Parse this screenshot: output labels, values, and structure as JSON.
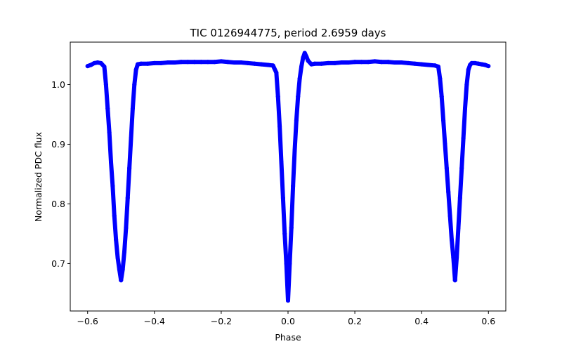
{
  "chart_data": {
    "type": "scatter",
    "title": "TIC 0126944775, period 2.6959 days",
    "xlabel": "Phase",
    "ylabel": "Normalized PDC flux",
    "xlim": [
      -0.652,
      0.652
    ],
    "ylim": [
      0.6205,
      1.0712
    ],
    "x_ticks": [
      -0.6,
      -0.4,
      -0.2,
      0.0,
      0.2,
      0.4,
      0.6
    ],
    "x_tick_labels": [
      "−0.6",
      "−0.4",
      "−0.2",
      "0.0",
      "0.2",
      "0.4",
      "0.6"
    ],
    "y_ticks": [
      0.7,
      0.8,
      0.9,
      1.0
    ],
    "y_tick_labels": [
      "0.7",
      "0.8",
      "0.9",
      "1.0"
    ],
    "grid": false,
    "legend": "none",
    "marker_color": "#0000ff",
    "series": [
      {
        "x": [
          -0.6,
          -0.59,
          -0.58,
          -0.57,
          -0.56,
          -0.55,
          -0.545,
          -0.54,
          -0.535,
          -0.53,
          -0.525,
          -0.52,
          -0.515,
          -0.51,
          -0.505,
          -0.5,
          -0.495,
          -0.49,
          -0.485,
          -0.48,
          -0.475,
          -0.47,
          -0.465,
          -0.46,
          -0.455,
          -0.45,
          -0.44,
          -0.42,
          -0.4,
          -0.38,
          -0.36,
          -0.34,
          -0.32,
          -0.3,
          -0.28,
          -0.26,
          -0.24,
          -0.22,
          -0.2,
          -0.18,
          -0.16,
          -0.14,
          -0.12,
          -0.1,
          -0.08,
          -0.06,
          -0.045,
          -0.035,
          -0.03,
          -0.025,
          -0.02,
          -0.015,
          -0.01,
          -0.005,
          0.0,
          0.005,
          0.01,
          0.015,
          0.02,
          0.025,
          0.03,
          0.035,
          0.04,
          0.045,
          0.05,
          0.055,
          0.06,
          0.07,
          0.08,
          0.1,
          0.12,
          0.14,
          0.16,
          0.18,
          0.2,
          0.22,
          0.24,
          0.26,
          0.28,
          0.3,
          0.32,
          0.34,
          0.36,
          0.38,
          0.4,
          0.42,
          0.44,
          0.45,
          0.455,
          0.46,
          0.465,
          0.47,
          0.475,
          0.48,
          0.485,
          0.49,
          0.495,
          0.5,
          0.505,
          0.51,
          0.515,
          0.52,
          0.525,
          0.53,
          0.535,
          0.54,
          0.545,
          0.55,
          0.56,
          0.57,
          0.58,
          0.59,
          0.6
        ],
        "y": [
          1.031,
          1.033,
          1.036,
          1.037,
          1.036,
          1.03,
          1.0,
          0.96,
          0.92,
          0.87,
          0.83,
          0.78,
          0.74,
          0.71,
          0.69,
          0.672,
          0.69,
          0.72,
          0.76,
          0.81,
          0.86,
          0.91,
          0.96,
          1.0,
          1.025,
          1.034,
          1.035,
          1.035,
          1.036,
          1.036,
          1.037,
          1.037,
          1.038,
          1.038,
          1.038,
          1.038,
          1.038,
          1.038,
          1.039,
          1.038,
          1.037,
          1.037,
          1.036,
          1.035,
          1.034,
          1.033,
          1.032,
          1.02,
          0.98,
          0.93,
          0.87,
          0.81,
          0.75,
          0.7,
          0.638,
          0.7,
          0.76,
          0.83,
          0.89,
          0.94,
          0.98,
          1.01,
          1.03,
          1.045,
          1.053,
          1.047,
          1.04,
          1.034,
          1.035,
          1.035,
          1.036,
          1.036,
          1.037,
          1.037,
          1.038,
          1.038,
          1.038,
          1.039,
          1.038,
          1.038,
          1.037,
          1.037,
          1.036,
          1.035,
          1.034,
          1.033,
          1.032,
          1.03,
          1.01,
          0.98,
          0.94,
          0.9,
          0.86,
          0.82,
          0.78,
          0.74,
          0.71,
          0.672,
          0.71,
          0.76,
          0.81,
          0.86,
          0.91,
          0.96,
          1.0,
          1.025,
          1.033,
          1.036,
          1.036,
          1.035,
          1.034,
          1.033,
          1.031
        ]
      }
    ]
  }
}
